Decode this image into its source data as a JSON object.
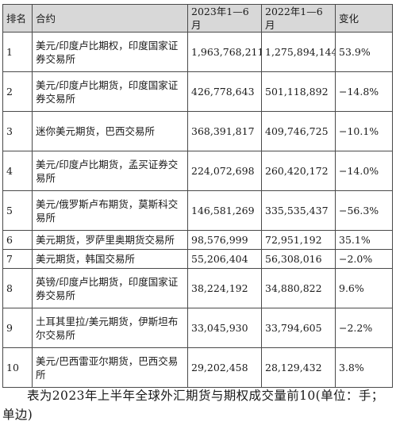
{
  "table": {
    "headers": [
      "排名",
      "合约",
      "2023年1—6月",
      "2022年1—6月",
      "变化"
    ],
    "rows": [
      {
        "rank": "1",
        "contract": "美元/印度卢比期权，印度国家证券交易所",
        "v2023": "1,963,768,211",
        "v2022": "1,275,894,144",
        "change": "53.9%"
      },
      {
        "rank": "2",
        "contract": "美元/印度卢比期货，印度国家证券交易所",
        "v2023": "426,778,643",
        "v2022": "501,118,892",
        "change": "−14.8%"
      },
      {
        "rank": "3",
        "contract": "迷你美元期货，巴西交易所",
        "v2023": "368,391,817",
        "v2022": "409,746,725",
        "change": "−10.1%"
      },
      {
        "rank": "4",
        "contract": "美元/印度卢比期货，孟买证券交易所",
        "v2023": "224,072,698",
        "v2022": "260,420,172",
        "change": "−14.0%"
      },
      {
        "rank": "5",
        "contract": "美元/俄罗斯卢布期货，莫斯科交易所",
        "v2023": "146,581,269",
        "v2022": "335,535,437",
        "change": "−56.3%"
      },
      {
        "rank": "6",
        "contract": "美元期货，罗萨里奥期货交易所",
        "v2023": "98,576,999",
        "v2022": "72,951,192",
        "change": "35.1%"
      },
      {
        "rank": "7",
        "contract": "美元期货，韩国交易所",
        "v2023": "55,206,404",
        "v2022": "56,308,016",
        "change": "−2.0%"
      },
      {
        "rank": "8",
        "contract": "英镑/印度卢比期货，印度国家证券交易所",
        "v2023": "38,224,192",
        "v2022": "34,880,822",
        "change": "9.6%"
      },
      {
        "rank": "9",
        "contract": "土耳其里拉/美元期货，伊斯坦布尔交易所",
        "v2023": "33,045,930",
        "v2022": "33,794,605",
        "change": "−2.2%"
      },
      {
        "rank": "10",
        "contract": "美元/巴西雷亚尔期货，巴西交易所",
        "v2023": "29,202,458",
        "v2022": "28,129,432",
        "change": "3.8%"
      }
    ]
  },
  "caption": "表为2023年上半年全球外汇期货与期权成交量前10(单位：手；单边)",
  "colors": {
    "header_bg": "#d8d8d8",
    "border": "#4a4a4a",
    "text": "#1a1a1a"
  }
}
